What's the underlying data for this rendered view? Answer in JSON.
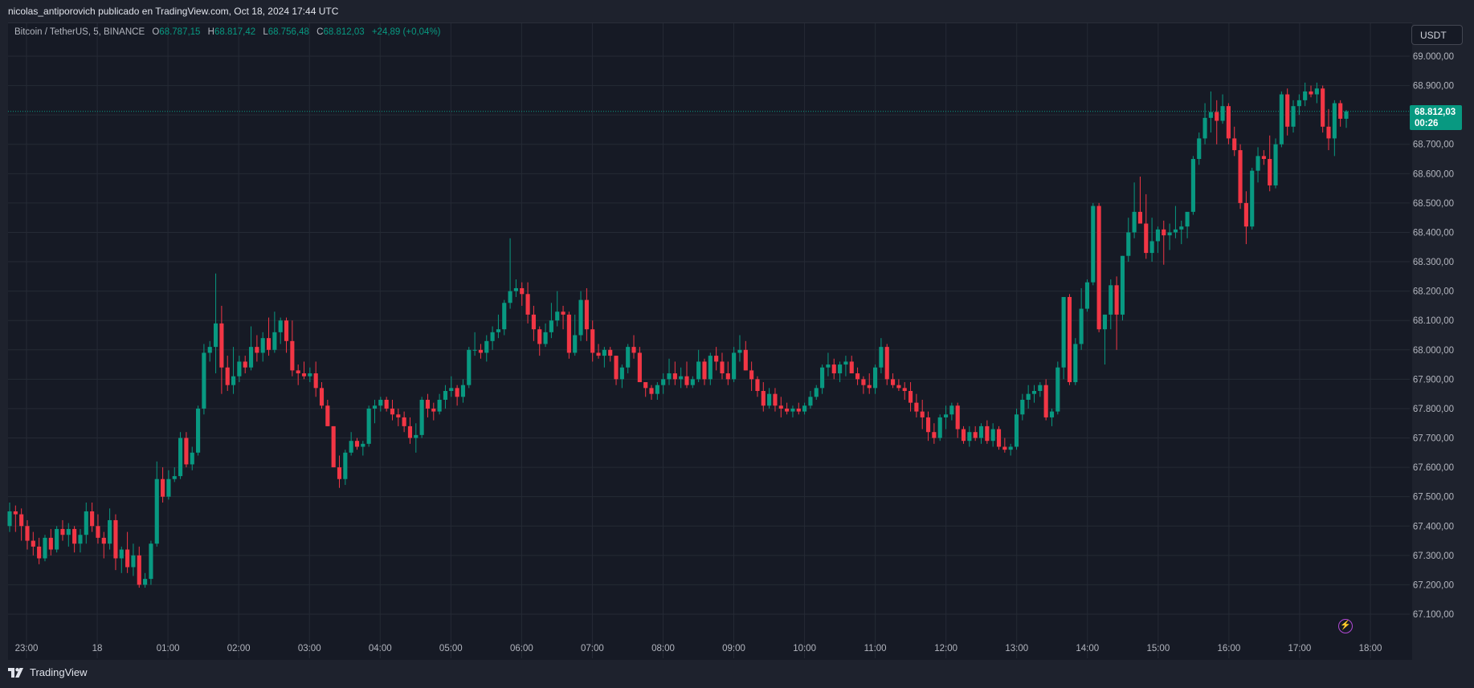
{
  "header": {
    "attribution": "nicolas_antiporovich publicado en TradingView.com, Oct 18, 2024 17:44 UTC"
  },
  "legend": {
    "symbol": "Bitcoin / TetherUS, 5, BINANCE",
    "open_label": "O",
    "open": "68.787,15",
    "high_label": "H",
    "high": "68.817,42",
    "low_label": "L",
    "low": "68.756,48",
    "close_label": "C",
    "close": "68.812,03",
    "change": "+24,89 (+0,04%)"
  },
  "currency_button": "USDT",
  "last_price": {
    "price": "68.812,03",
    "countdown": "00:26"
  },
  "footer": {
    "brand": "TradingView"
  },
  "colors": {
    "up": "#089981",
    "down": "#f23645",
    "background": "#161a25",
    "grid": "#252a35",
    "price_line": "#089981"
  },
  "icons": {
    "alert": "lightning-bolt-icon",
    "brand": "tradingview-logo-icon"
  },
  "chart_data": {
    "type": "candlestick",
    "symbol": "BTCUSDT",
    "interval": "5",
    "exchange": "BINANCE",
    "y_range": [
      67000,
      69050
    ],
    "y_ticks": [
      67100,
      67200,
      67300,
      67400,
      67500,
      67600,
      67700,
      67800,
      67900,
      68000,
      68100,
      68200,
      68300,
      68400,
      68500,
      68600,
      68700,
      68800,
      68900,
      69000
    ],
    "y_tick_labels": [
      "67.100,00",
      "67.200,00",
      "67.300,00",
      "67.400,00",
      "67.500,00",
      "67.600,00",
      "67.700,00",
      "67.800,00",
      "67.900,00",
      "68.000,00",
      "68.100,00",
      "68.200,00",
      "68.300,00",
      "68.400,00",
      "68.500,00",
      "68.600,00",
      "68.700,00",
      "68.800,00",
      "68.900,00",
      "69.000,00"
    ],
    "x_tick_labels": [
      "23:00",
      "18",
      "01:00",
      "02:00",
      "03:00",
      "04:00",
      "05:00",
      "06:00",
      "07:00",
      "08:00",
      "09:00",
      "10:00",
      "11:00",
      "12:00",
      "13:00",
      "14:00",
      "15:00",
      "16:00",
      "17:00",
      "18:00"
    ],
    "x_range_hours": [
      22.95,
      42.95
    ],
    "grid": true,
    "last_price": 68812.03,
    "candles_ohlc": [
      [
        67400,
        67480,
        67380,
        67450
      ],
      [
        67450,
        67470,
        67380,
        67440
      ],
      [
        67440,
        67460,
        67350,
        67400
      ],
      [
        67400,
        67420,
        67320,
        67350
      ],
      [
        67350,
        67380,
        67300,
        67330
      ],
      [
        67330,
        67360,
        67270,
        67290
      ],
      [
        67290,
        67370,
        67280,
        67360
      ],
      [
        67360,
        67390,
        67300,
        67320
      ],
      [
        67320,
        67400,
        67310,
        67390
      ],
      [
        67390,
        67420,
        67350,
        67370
      ],
      [
        67370,
        67410,
        67330,
        67390
      ],
      [
        67390,
        67400,
        67310,
        67340
      ],
      [
        67340,
        67390,
        67310,
        67370
      ],
      [
        67370,
        67480,
        67340,
        67450
      ],
      [
        67450,
        67480,
        67380,
        67400
      ],
      [
        67400,
        67440,
        67340,
        67360
      ],
      [
        67360,
        67380,
        67290,
        67340
      ],
      [
        67340,
        67460,
        67320,
        67420
      ],
      [
        67420,
        67440,
        67250,
        67290
      ],
      [
        67290,
        67330,
        67240,
        67320
      ],
      [
        67320,
        67380,
        67240,
        67260
      ],
      [
        67260,
        67340,
        67230,
        67300
      ],
      [
        67300,
        67330,
        67190,
        67200
      ],
      [
        67200,
        67240,
        67190,
        67220
      ],
      [
        67220,
        67350,
        67200,
        67340
      ],
      [
        67340,
        67620,
        67330,
        67560
      ],
      [
        67560,
        67600,
        67480,
        67500
      ],
      [
        67500,
        67590,
        67490,
        67560
      ],
      [
        67560,
        67600,
        67550,
        67570
      ],
      [
        67570,
        67720,
        67560,
        67700
      ],
      [
        67700,
        67720,
        67600,
        67610
      ],
      [
        67610,
        67670,
        67590,
        67650
      ],
      [
        67650,
        67810,
        67640,
        67800
      ],
      [
        67800,
        68020,
        67780,
        67990
      ],
      [
        67990,
        68030,
        67960,
        68010
      ],
      [
        68010,
        68260,
        67920,
        68090
      ],
      [
        68090,
        68150,
        67850,
        67940
      ],
      [
        67940,
        67980,
        67860,
        67880
      ],
      [
        67880,
        68010,
        67850,
        67910
      ],
      [
        67910,
        67980,
        67890,
        67960
      ],
      [
        67960,
        67980,
        67920,
        67940
      ],
      [
        67940,
        68080,
        67930,
        68010
      ],
      [
        68010,
        68050,
        67960,
        67990
      ],
      [
        67990,
        68060,
        67960,
        68040
      ],
      [
        68040,
        68110,
        67980,
        68000
      ],
      [
        68000,
        68130,
        67990,
        68060
      ],
      [
        68060,
        68110,
        68020,
        68100
      ],
      [
        68100,
        68110,
        67990,
        68030
      ],
      [
        68030,
        68100,
        67910,
        67930
      ],
      [
        67930,
        67950,
        67880,
        67920
      ],
      [
        67920,
        67960,
        67900,
        67910
      ],
      [
        67910,
        67940,
        67890,
        67920
      ],
      [
        67920,
        67960,
        67840,
        67870
      ],
      [
        67870,
        67890,
        67800,
        67810
      ],
      [
        67810,
        67830,
        67740,
        67740
      ],
      [
        67740,
        67740,
        67600,
        67600
      ],
      [
        67600,
        67640,
        67530,
        67560
      ],
      [
        67560,
        67660,
        67540,
        67650
      ],
      [
        67650,
        67720,
        67640,
        67690
      ],
      [
        67690,
        67700,
        67660,
        67670
      ],
      [
        67670,
        67690,
        67640,
        67680
      ],
      [
        67680,
        67810,
        67670,
        67800
      ],
      [
        67800,
        67830,
        67750,
        67810
      ],
      [
        67810,
        67840,
        67790,
        67830
      ],
      [
        67830,
        67840,
        67790,
        67800
      ],
      [
        67800,
        67830,
        67760,
        67780
      ],
      [
        67780,
        67800,
        67740,
        67770
      ],
      [
        67770,
        67790,
        67720,
        67740
      ],
      [
        67740,
        67770,
        67680,
        67700
      ],
      [
        67700,
        67750,
        67650,
        67710
      ],
      [
        67710,
        67840,
        67700,
        67830
      ],
      [
        67830,
        67850,
        67770,
        67800
      ],
      [
        67800,
        67820,
        67760,
        67790
      ],
      [
        67790,
        67850,
        67780,
        67830
      ],
      [
        67830,
        67880,
        67800,
        67860
      ],
      [
        67860,
        67910,
        67840,
        67870
      ],
      [
        67870,
        67880,
        67810,
        67840
      ],
      [
        67840,
        67900,
        67820,
        67880
      ],
      [
        67880,
        68010,
        67870,
        68000
      ],
      [
        68000,
        68060,
        67980,
        68000
      ],
      [
        68000,
        68020,
        67970,
        67990
      ],
      [
        67990,
        68050,
        67960,
        68030
      ],
      [
        68030,
        68080,
        68000,
        68060
      ],
      [
        68060,
        68120,
        68040,
        68070
      ],
      [
        68070,
        68170,
        68050,
        68160
      ],
      [
        68160,
        68380,
        68140,
        68200
      ],
      [
        68200,
        68240,
        68180,
        68210
      ],
      [
        68210,
        68230,
        68150,
        68190
      ],
      [
        68190,
        68230,
        68090,
        68120
      ],
      [
        68120,
        68150,
        68030,
        68070
      ],
      [
        68070,
        68080,
        67980,
        68020
      ],
      [
        68020,
        68090,
        68010,
        68060
      ],
      [
        68060,
        68160,
        68040,
        68100
      ],
      [
        68100,
        68200,
        68080,
        68130
      ],
      [
        68130,
        68150,
        68070,
        68120
      ],
      [
        68120,
        68130,
        67970,
        67990
      ],
      [
        67990,
        68120,
        67980,
        68050
      ],
      [
        68050,
        68200,
        68030,
        68170
      ],
      [
        68170,
        68210,
        68030,
        68070
      ],
      [
        68070,
        68100,
        67960,
        67990
      ],
      [
        67990,
        68020,
        67970,
        67980
      ],
      [
        67980,
        68010,
        67940,
        68000
      ],
      [
        68000,
        68010,
        67960,
        67980
      ],
      [
        67980,
        67980,
        67880,
        67900
      ],
      [
        67900,
        67950,
        67870,
        67940
      ],
      [
        67940,
        68020,
        67920,
        68010
      ],
      [
        68010,
        68050,
        67970,
        67990
      ],
      [
        67990,
        68010,
        67900,
        67890
      ],
      [
        67890,
        67890,
        67840,
        67870
      ],
      [
        67870,
        67880,
        67830,
        67850
      ],
      [
        67850,
        67890,
        67830,
        67880
      ],
      [
        67880,
        67920,
        67850,
        67900
      ],
      [
        67900,
        67970,
        67880,
        67920
      ],
      [
        67920,
        67960,
        67880,
        67900
      ],
      [
        67900,
        67940,
        67870,
        67910
      ],
      [
        67910,
        67960,
        67870,
        67880
      ],
      [
        67880,
        67910,
        67870,
        67900
      ],
      [
        67900,
        68000,
        67890,
        67960
      ],
      [
        67960,
        67970,
        67880,
        67900
      ],
      [
        67900,
        67990,
        67880,
        67980
      ],
      [
        67980,
        68010,
        67930,
        67960
      ],
      [
        67960,
        67990,
        67900,
        67920
      ],
      [
        67920,
        67960,
        67880,
        67900
      ],
      [
        67900,
        68010,
        67890,
        67990
      ],
      [
        67990,
        68050,
        67960,
        68000
      ],
      [
        68000,
        68030,
        67930,
        67930
      ],
      [
        67930,
        67960,
        67860,
        67900
      ],
      [
        67900,
        67910,
        67840,
        67860
      ],
      [
        67860,
        67890,
        67790,
        67810
      ],
      [
        67810,
        67870,
        67800,
        67850
      ],
      [
        67850,
        67870,
        67790,
        67810
      ],
      [
        67810,
        67840,
        67770,
        67800
      ],
      [
        67800,
        67820,
        67780,
        67790
      ],
      [
        67790,
        67810,
        67770,
        67800
      ],
      [
        67800,
        67820,
        67780,
        67790
      ],
      [
        67790,
        67820,
        67780,
        67810
      ],
      [
        67810,
        67860,
        67800,
        67840
      ],
      [
        67840,
        67880,
        67830,
        67870
      ],
      [
        67870,
        67950,
        67850,
        67940
      ],
      [
        67940,
        67990,
        67910,
        67950
      ],
      [
        67950,
        67970,
        67900,
        67920
      ],
      [
        67920,
        67960,
        67890,
        67950
      ],
      [
        67950,
        67980,
        67910,
        67960
      ],
      [
        67960,
        67980,
        67920,
        67920
      ],
      [
        67920,
        67940,
        67880,
        67900
      ],
      [
        67900,
        67910,
        67850,
        67880
      ],
      [
        67880,
        67920,
        67850,
        67870
      ],
      [
        67870,
        67950,
        67850,
        67940
      ],
      [
        67940,
        68040,
        67920,
        68010
      ],
      [
        68010,
        68020,
        67880,
        67900
      ],
      [
        67900,
        67920,
        67870,
        67880
      ],
      [
        67880,
        67900,
        67860,
        67870
      ],
      [
        67870,
        67890,
        67830,
        67860
      ],
      [
        67860,
        67890,
        67790,
        67820
      ],
      [
        67820,
        67850,
        67770,
        67790
      ],
      [
        67790,
        67830,
        67730,
        67770
      ],
      [
        67770,
        67790,
        67690,
        67720
      ],
      [
        67720,
        67750,
        67680,
        67700
      ],
      [
        67700,
        67780,
        67690,
        67770
      ],
      [
        67770,
        67810,
        67730,
        67780
      ],
      [
        67780,
        67820,
        67760,
        67810
      ],
      [
        67810,
        67820,
        67700,
        67730
      ],
      [
        67730,
        67740,
        67680,
        67690
      ],
      [
        67690,
        67740,
        67670,
        67720
      ],
      [
        67720,
        67740,
        67690,
        67700
      ],
      [
        67700,
        67750,
        67680,
        67740
      ],
      [
        67740,
        67760,
        67680,
        67690
      ],
      [
        67690,
        67750,
        67670,
        67730
      ],
      [
        67730,
        67740,
        67660,
        67670
      ],
      [
        67670,
        67700,
        67650,
        67660
      ],
      [
        67660,
        67680,
        67640,
        67670
      ],
      [
        67670,
        67800,
        67660,
        67780
      ],
      [
        67780,
        67850,
        67760,
        67830
      ],
      [
        67830,
        67880,
        67800,
        67850
      ],
      [
        67850,
        67880,
        67820,
        67860
      ],
      [
        67860,
        67890,
        67840,
        67880
      ],
      [
        67880,
        67900,
        67760,
        67770
      ],
      [
        67770,
        67800,
        67740,
        67790
      ],
      [
        67790,
        67960,
        67780,
        67940
      ],
      [
        67940,
        68120,
        67900,
        68180
      ],
      [
        68180,
        68190,
        67880,
        67890
      ],
      [
        67890,
        68040,
        67880,
        68020
      ],
      [
        68020,
        68210,
        68000,
        68140
      ],
      [
        68140,
        68240,
        68130,
        68230
      ],
      [
        68230,
        68500,
        68220,
        68490
      ],
      [
        68490,
        68500,
        68060,
        68070
      ],
      [
        68070,
        68120,
        67950,
        68120
      ],
      [
        68120,
        68240,
        68070,
        68220
      ],
      [
        68220,
        68250,
        68000,
        68120
      ],
      [
        68120,
        68320,
        68100,
        68320
      ],
      [
        68320,
        68450,
        68300,
        68400
      ],
      [
        68400,
        68570,
        68380,
        68470
      ],
      [
        68470,
        68590,
        68430,
        68430
      ],
      [
        68430,
        68530,
        68310,
        68330
      ],
      [
        68330,
        68450,
        68300,
        68370
      ],
      [
        68370,
        68420,
        68330,
        68410
      ],
      [
        68410,
        68440,
        68290,
        68390
      ],
      [
        68390,
        68430,
        68340,
        68400
      ],
      [
        68400,
        68490,
        68380,
        68410
      ],
      [
        68410,
        68440,
        68360,
        68420
      ],
      [
        68420,
        68460,
        68380,
        68470
      ],
      [
        68470,
        68660,
        68460,
        68650
      ],
      [
        68650,
        68740,
        68630,
        68720
      ],
      [
        68720,
        68840,
        68700,
        68790
      ],
      [
        68790,
        68880,
        68740,
        68810
      ],
      [
        68810,
        68850,
        68700,
        68780
      ],
      [
        68780,
        68870,
        68770,
        68830
      ],
      [
        68830,
        68840,
        68700,
        68720
      ],
      [
        68720,
        68760,
        68660,
        68680
      ],
      [
        68680,
        68700,
        68480,
        68500
      ],
      [
        68500,
        68540,
        68360,
        68420
      ],
      [
        68420,
        68620,
        68410,
        68610
      ],
      [
        68610,
        68690,
        68570,
        68660
      ],
      [
        68660,
        68680,
        68630,
        68650
      ],
      [
        68650,
        68730,
        68540,
        68560
      ],
      [
        68560,
        68720,
        68550,
        68700
      ],
      [
        68700,
        68880,
        68690,
        68870
      ],
      [
        68870,
        68890,
        68730,
        68760
      ],
      [
        68760,
        68850,
        68740,
        68830
      ],
      [
        68830,
        68870,
        68800,
        68850
      ],
      [
        68850,
        68910,
        68830,
        68880
      ],
      [
        68880,
        68900,
        68860,
        68870
      ],
      [
        68870,
        68910,
        68840,
        68890
      ],
      [
        68890,
        68900,
        68740,
        68760
      ],
      [
        68760,
        68820,
        68680,
        68720
      ],
      [
        68720,
        68850,
        68660,
        68840
      ],
      [
        68840,
        68850,
        68760,
        68787
      ],
      [
        68787,
        68817,
        68756,
        68812
      ]
    ]
  }
}
